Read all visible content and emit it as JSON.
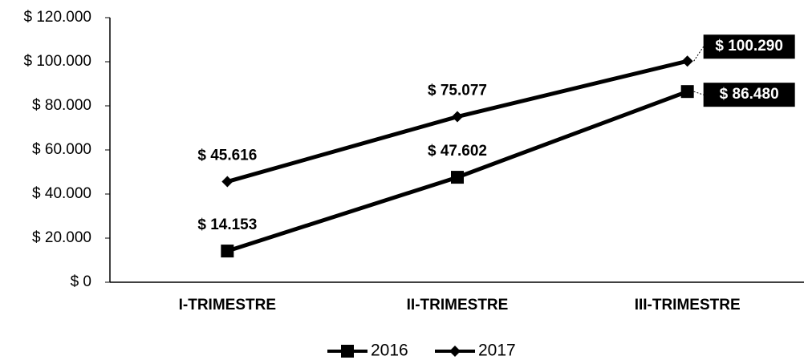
{
  "chart_data": {
    "type": "line",
    "categories": [
      "I-TRIMESTRE",
      "II-TRIMESTRE",
      "III-TRIMESTRE"
    ],
    "series": [
      {
        "name": "2016",
        "color": "#000000",
        "marker": "square",
        "values": [
          14153,
          47602,
          86480
        ],
        "value_labels": [
          "$ 14.153",
          "$ 47.602",
          "$ 86.480"
        ]
      },
      {
        "name": "2017",
        "color": "#000000",
        "marker": "diamond",
        "values": [
          45616,
          75077,
          100290
        ],
        "value_labels": [
          "$ 45.616",
          "$ 75.077",
          "$ 100.290"
        ]
      }
    ],
    "ylim": [
      0,
      120000
    ],
    "yticks": [
      {
        "value": 0,
        "label": "$ 0"
      },
      {
        "value": 20000,
        "label": "$ 20.000"
      },
      {
        "value": 40000,
        "label": "$ 40.000"
      },
      {
        "value": 60000,
        "label": "$ 60.000"
      },
      {
        "value": 80000,
        "label": "$ 80.000"
      },
      {
        "value": 100000,
        "label": "$ 100.000"
      },
      {
        "value": 120000,
        "label": "$ 120.000"
      }
    ],
    "grid": false,
    "legend": "bottom"
  }
}
